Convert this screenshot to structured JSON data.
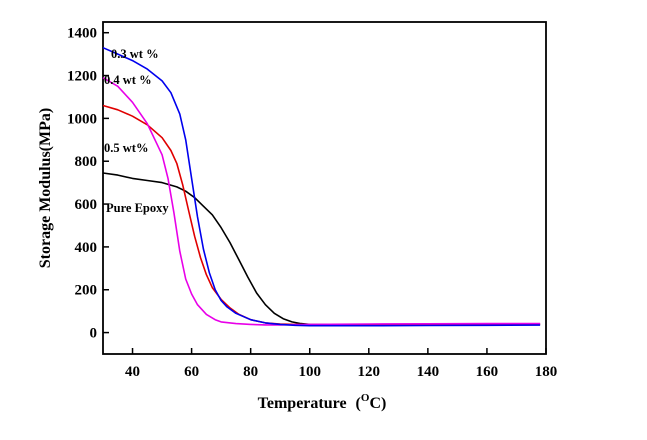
{
  "chart_data": {
    "type": "line",
    "title": "",
    "xlabel": "Temperature",
    "xlabel_unit": {
      "prefix": "(",
      "sup": "O",
      "suffix": "C)"
    },
    "ylabel": "Storage Modulus(MPa)",
    "xlim": [
      30,
      180
    ],
    "ylim": [
      -100,
      1450
    ],
    "xticks": [
      40,
      60,
      80,
      100,
      120,
      140,
      160,
      180
    ],
    "yticks": [
      0,
      200,
      400,
      600,
      800,
      1000,
      1200,
      1400
    ],
    "grid": false,
    "series": [
      {
        "name": "0.3 wt %",
        "color": "#0000ee",
        "x": [
          30,
          35,
          40,
          45,
          50,
          53,
          56,
          58,
          60,
          62,
          64,
          66,
          68,
          70,
          72,
          75,
          80,
          85,
          90,
          95,
          100,
          120,
          140,
          160,
          178
        ],
        "y": [
          1330,
          1300,
          1270,
          1230,
          1175,
          1120,
          1020,
          900,
          720,
          540,
          390,
          280,
          200,
          150,
          120,
          90,
          60,
          45,
          38,
          34,
          32,
          32,
          33,
          34,
          35
        ]
      },
      {
        "name": "0.4 wt %",
        "color": "#e800e8",
        "x": [
          30,
          35,
          40,
          45,
          50,
          52,
          54,
          56,
          58,
          60,
          62,
          65,
          68,
          70,
          75,
          80,
          85,
          90,
          95,
          100,
          120,
          140,
          160,
          178
        ],
        "y": [
          1190,
          1150,
          1075,
          975,
          830,
          720,
          560,
          380,
          250,
          180,
          130,
          85,
          60,
          50,
          42,
          38,
          36,
          36,
          37,
          38,
          40,
          41,
          42,
          42
        ]
      },
      {
        "name": "0.5 wt%",
        "color": "#e00000",
        "x": [
          30,
          35,
          40,
          45,
          50,
          53,
          55,
          57,
          59,
          61,
          63,
          65,
          67,
          70,
          73,
          76,
          80,
          85,
          90,
          95,
          100,
          120,
          140,
          160,
          178
        ],
        "y": [
          1060,
          1040,
          1010,
          970,
          910,
          850,
          790,
          690,
          570,
          450,
          350,
          270,
          210,
          155,
          115,
          85,
          60,
          45,
          40,
          38,
          37,
          38,
          39,
          40,
          40
        ]
      },
      {
        "name": "Pure Epoxy",
        "color": "#000000",
        "x": [
          30,
          35,
          40,
          45,
          50,
          55,
          58,
          61,
          64,
          67,
          70,
          73,
          76,
          79,
          82,
          85,
          88,
          91,
          94,
          97,
          100,
          120,
          140,
          160,
          178
        ],
        "y": [
          745,
          735,
          720,
          710,
          700,
          680,
          660,
          630,
          590,
          550,
          490,
          420,
          340,
          260,
          185,
          130,
          90,
          65,
          50,
          42,
          38,
          37,
          37,
          38,
          38
        ]
      }
    ],
    "annotations": [
      {
        "text": "0.3 wt %",
        "series": "0.3 wt %"
      },
      {
        "text": "0.4 wt %",
        "series": "0.4 wt %"
      },
      {
        "text": "0.5  wt%",
        "series": "0.5 wt%"
      },
      {
        "text": "Pure Epoxy",
        "series": "Pure Epoxy"
      }
    ]
  }
}
